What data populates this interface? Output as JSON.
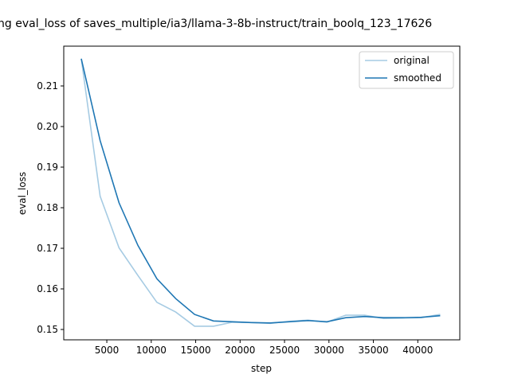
{
  "chart_data": {
    "type": "line",
    "title": "ng eval_loss of saves_multiple/ia3/llama-3-8b-instruct/train_boolq_123_17626",
    "xlabel": "step",
    "ylabel": "eval_loss",
    "xlim": [
      0,
      45000
    ],
    "ylim": [
      0.1486,
      0.2186
    ],
    "xticks": [
      5000,
      10000,
      15000,
      20000,
      25000,
      30000,
      35000,
      40000
    ],
    "yticks": [
      0.15,
      0.16,
      0.17,
      0.18,
      0.19,
      0.2,
      0.21
    ],
    "ytick_labels": [
      "0.15",
      "0.16",
      "0.17",
      "0.18",
      "0.19",
      "0.20",
      "0.21"
    ],
    "grid": false,
    "legend_position": "top-right",
    "x": [
      2126,
      4252,
      6378,
      8504,
      10630,
      12756,
      14882,
      17008,
      19134,
      21260,
      23386,
      25512,
      27638,
      29764,
      31890,
      34016,
      36142,
      38268,
      40394,
      42520
    ],
    "series": [
      {
        "name": "original",
        "color": "#a6cbe3",
        "values": [
          0.2167,
          0.1828,
          0.1701,
          0.1633,
          0.1567,
          0.1543,
          0.1508,
          0.1508,
          0.1518,
          0.1517,
          0.1515,
          0.152,
          0.1523,
          0.1518,
          0.1535,
          0.1535,
          0.1527,
          0.1528,
          0.1529,
          0.1537
        ]
      },
      {
        "name": "smoothed",
        "color": "#1f77b4",
        "values": [
          0.2167,
          0.1965,
          0.1812,
          0.1707,
          0.1625,
          0.1576,
          0.1537,
          0.1521,
          0.1519,
          0.1517,
          0.1516,
          0.1519,
          0.1522,
          0.1519,
          0.1529,
          0.1532,
          0.1529,
          0.1529,
          0.153,
          0.1534
        ]
      }
    ]
  }
}
